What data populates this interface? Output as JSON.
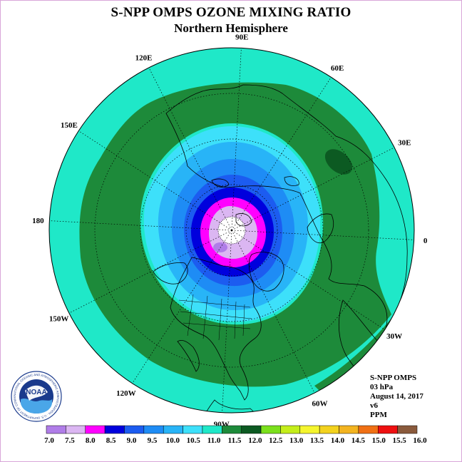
{
  "title": "S-NPP OMPS OZONE MIXING RATIO",
  "subtitle": "Northern Hemisphere",
  "info": {
    "satellite": "S-NPP OMPS",
    "pressure_level": "03 hPa",
    "date": "August 14, 2017",
    "version": "v6",
    "units": "PPM"
  },
  "logo": {
    "text": "NOAA",
    "ring_text": "NATIONAL OCEANIC AND ATMOSPHERIC ADMINISTRATION · U.S. DEPARTMENT OF COMMERCE"
  },
  "longitude_labels": [
    {
      "text": "90E",
      "lon": 90
    },
    {
      "text": "60E",
      "lon": 60
    },
    {
      "text": "30E",
      "lon": 30
    },
    {
      "text": "0",
      "lon": 0
    },
    {
      "text": "30W",
      "lon": -30
    },
    {
      "text": "60W",
      "lon": -60
    },
    {
      "text": "90W",
      "lon": -90
    },
    {
      "text": "120W",
      "lon": -120
    },
    {
      "text": "150W",
      "lon": -150
    },
    {
      "text": "180",
      "lon": 180
    },
    {
      "text": "150E",
      "lon": 150
    },
    {
      "text": "120E",
      "lon": 120
    }
  ],
  "colorbar": {
    "ticks": [
      "7.0",
      "7.5",
      "8.0",
      "8.5",
      "9.0",
      "9.5",
      "10.0",
      "10.5",
      "11.0",
      "11.5",
      "12.0",
      "12.5",
      "13.0",
      "13.5",
      "14.0",
      "14.5",
      "15.0",
      "15.5",
      "16.0"
    ],
    "colors": [
      "#b07de8",
      "#dbb6f2",
      "#ff00ff",
      "#0000dd",
      "#1c5cf0",
      "#1e8cf5",
      "#28b4f7",
      "#3de0fa",
      "#1fe8c8",
      "#1d8a3a",
      "#0c5a22",
      "#7be01c",
      "#c4ee1a",
      "#f5f52e",
      "#f3d21e",
      "#f3b420",
      "#f07014",
      "#ee1010",
      "#8a5a3c"
    ]
  },
  "map_colors": {
    "outer": "#1fe8c8",
    "band_11_5": "#1d8a3a",
    "band_12": "#0c5a22",
    "band_10_5": "#3de0fa",
    "band_10": "#28b4f7",
    "band_9_5": "#1e8cf5",
    "band_9": "#1c5cf0",
    "band_8_5": "#0000dd",
    "band_8": "#ff00ff",
    "band_7_5": "#dbb6f2",
    "band_7": "#b07de8",
    "pole": "#ffffff"
  }
}
